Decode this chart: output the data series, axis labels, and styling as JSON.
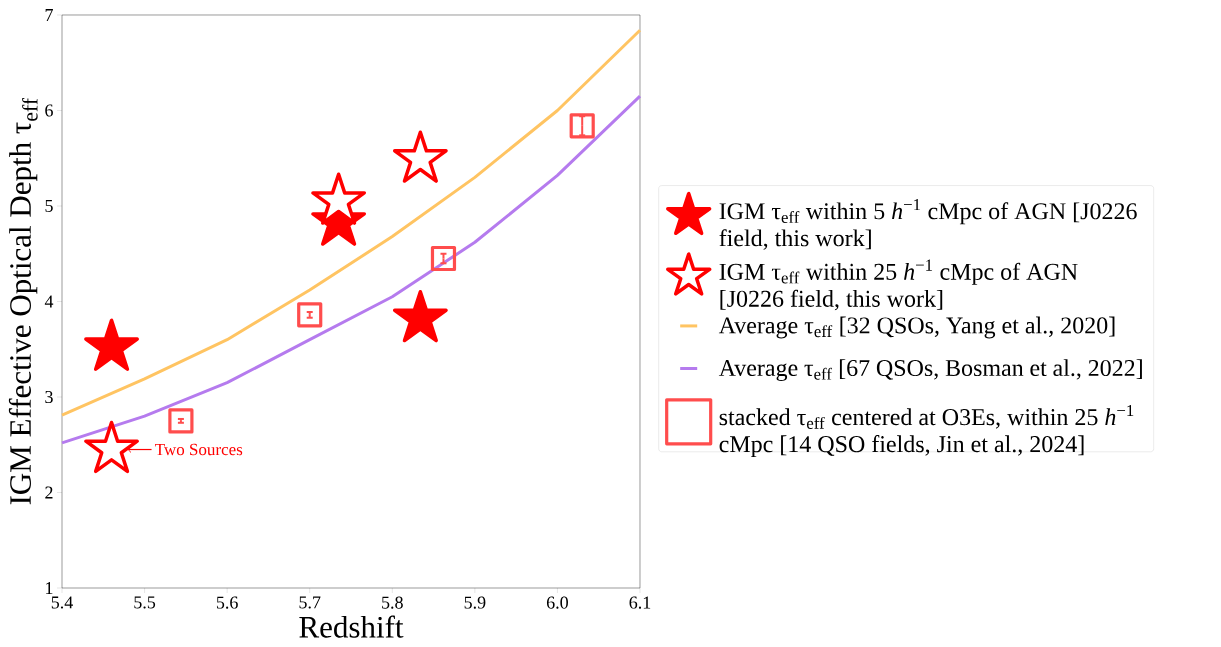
{
  "chart_data": {
    "type": "scatter",
    "xlabel": "Redshift",
    "ylabel": "IGM Effective Optical Depth τ$_{eff}$",
    "xlim": [
      5.4,
      6.1
    ],
    "xticks": [
      5.4,
      5.5,
      5.6,
      5.7,
      5.8,
      5.9,
      {
        "value": 6.0,
        "label": "6.0"
      },
      6.1
    ],
    "ylim": [
      1,
      7
    ],
    "yticks": [
      1,
      2,
      3,
      4,
      5,
      6,
      7
    ],
    "grid": false,
    "legend": "right",
    "series": [
      {
        "name": "IGM τ$_{eff}$ within 5 *h*$^{−1}$ cMpc of AGN [J0226 field, this work]",
        "type": "scatter",
        "marker": "star",
        "color": "#ff0000",
        "x": [
          5.46,
          5.735,
          5.834
        ],
        "values": [
          3.52,
          4.83,
          3.82
        ]
      },
      {
        "name": "IGM τ$_{eff}$ within 25 *h*$^{−1}$ cMpc of AGN [J0226 field, this work]",
        "type": "scatter",
        "marker": "star",
        "color": "#ff0000",
        "x": [
          5.46,
          5.735,
          5.834
        ],
        "values": [
          2.45,
          5.05,
          5.49
        ]
      },
      {
        "name": "Average τ$_{eff}$ [32 QSOs, Yang et al., 2020]",
        "type": "line",
        "marker": "none",
        "color": "#ffc462",
        "x": [
          5.4,
          5.5,
          5.6,
          5.7,
          5.8,
          5.9,
          6.0,
          6.1
        ],
        "values": [
          2.81,
          3.19,
          3.6,
          4.12,
          4.68,
          5.3,
          6.0,
          6.84
        ]
      },
      {
        "name": "Average τ$_{eff}$ [67 QSOs, Bosman et al., 2022]",
        "type": "line",
        "marker": "none",
        "color": "#b57bee",
        "x": [
          5.4,
          5.5,
          5.6,
          5.7,
          5.8,
          5.9,
          6.0,
          6.1
        ],
        "values": [
          2.52,
          2.8,
          3.15,
          3.6,
          4.05,
          4.62,
          5.32,
          6.15
        ]
      },
      {
        "name": "stacked τ$_{eff}$ centered at O3Es, within 25 *h*$^{−1}$ cMpc [14 QSO fields, Jin et al., 2024]",
        "type": "scatter",
        "marker": "square",
        "color": "#ff4d4d",
        "x": [
          5.544,
          5.7,
          5.862,
          6.03
        ],
        "values": [
          2.75,
          3.86,
          4.45,
          5.84
        ],
        "errors": [
          0.02,
          0.03,
          0.05,
          0.1
        ]
      }
    ],
    "annotations": [
      {
        "text": "Two Sources",
        "x": 5.46,
        "y": 2.45
      }
    ]
  }
}
